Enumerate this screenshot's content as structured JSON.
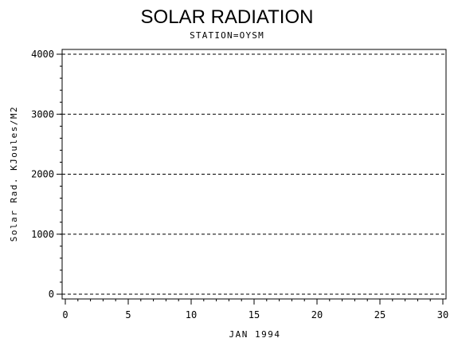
{
  "chart_data": {
    "type": "line",
    "title": "SOLAR RADIATION",
    "subtitle": "STATION=OYSM",
    "xlabel": "JAN 1994",
    "ylabel": "Solar Rad. KJoules/M2",
    "xlim": [
      0,
      30
    ],
    "ylim": [
      0,
      4000
    ],
    "x_major_ticks": [
      0,
      5,
      10,
      15,
      20,
      25,
      30
    ],
    "x_tick_labels": [
      "0",
      "5",
      "10",
      "15",
      "20",
      "25",
      "30"
    ],
    "x_minor_step": 1,
    "y_major_ticks": [
      0,
      1000,
      2000,
      3000,
      4000
    ],
    "y_tick_labels": [
      "0",
      "1000",
      "2000",
      "3000",
      "4000"
    ],
    "y_minor_step": 200,
    "grid": "horizontal-dashed",
    "series": [
      {
        "x": [],
        "values": []
      }
    ]
  }
}
